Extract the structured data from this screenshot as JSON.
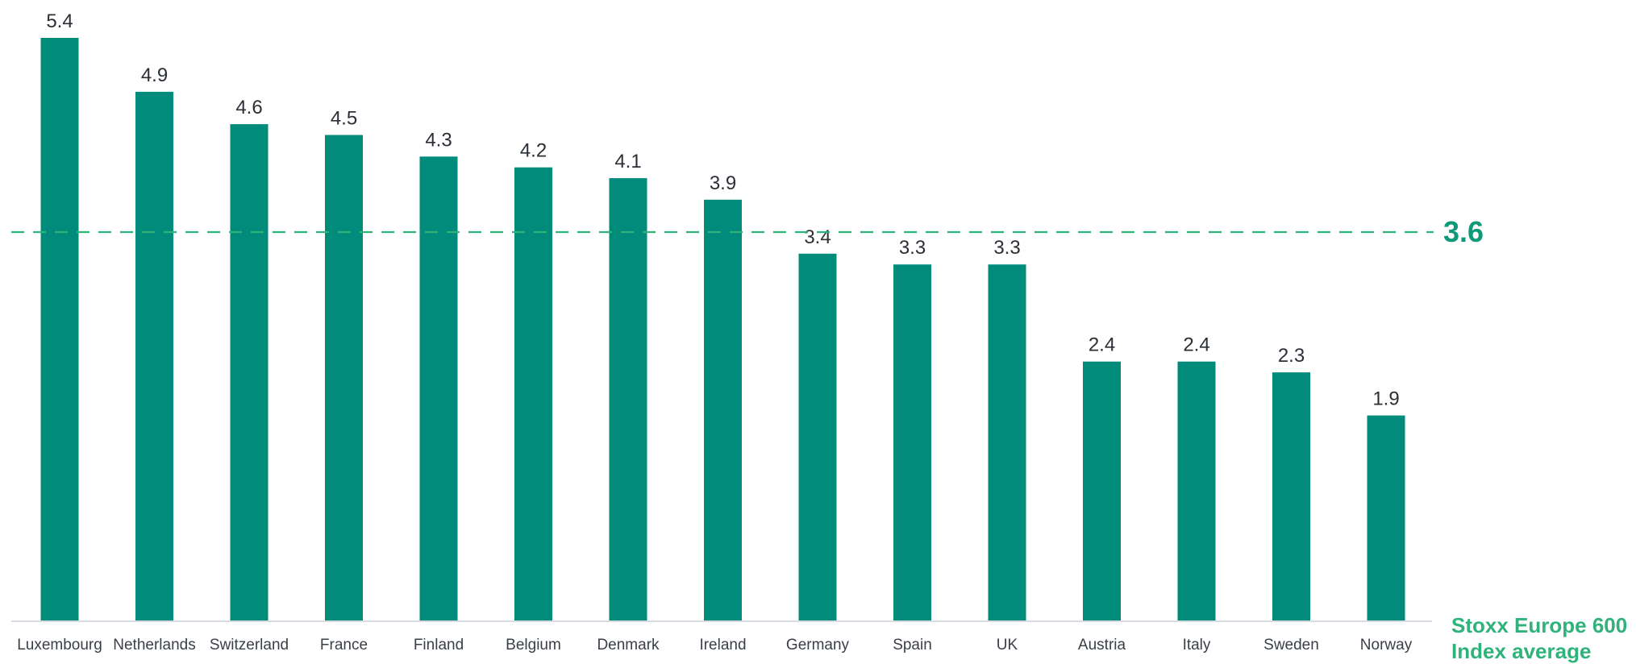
{
  "chart_data": {
    "type": "bar",
    "categories": [
      "Luxembourg",
      "Netherlands",
      "Switzerland",
      "France",
      "Finland",
      "Belgium",
      "Denmark",
      "Ireland",
      "Germany",
      "Spain",
      "UK",
      "Austria",
      "Italy",
      "Sweden",
      "Norway"
    ],
    "values": [
      5.4,
      4.9,
      4.6,
      4.5,
      4.3,
      4.2,
      4.1,
      3.9,
      3.4,
      3.3,
      3.3,
      2.4,
      2.4,
      2.3,
      1.9
    ],
    "value_labels": [
      "5.4",
      "4.9",
      "4.6",
      "4.5",
      "4.3",
      "4.2",
      "4.1",
      "3.9",
      "3.4",
      "3.3",
      "3.3",
      "2.4",
      "2.4",
      "2.3",
      "1.9"
    ],
    "ylim": [
      0,
      5.4
    ],
    "grid": false,
    "bar_color": "#008b7a",
    "reference_line": {
      "value": 3.6,
      "label": "3.6",
      "style": "dashed",
      "color": "#2fb37a",
      "caption_line1": "Stoxx Europe 600",
      "caption_line2": "Index average"
    }
  }
}
